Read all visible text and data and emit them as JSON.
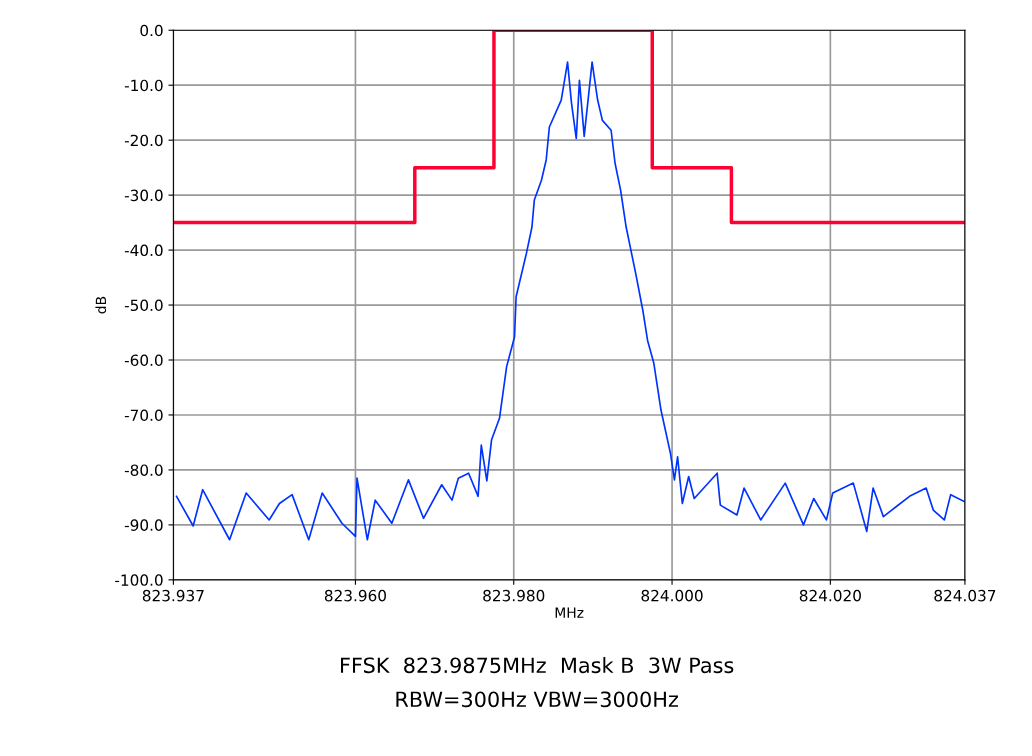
{
  "chart_data": {
    "type": "line",
    "title": "FFSK  823.9875MHz  Mask B  3W Pass",
    "subtitle": "RBW=300Hz VBW=3000Hz",
    "xlabel": "MHz",
    "ylabel": "dB",
    "xlim": [
      823.937,
      824.037
    ],
    "xticks": [
      823.937,
      {
        "value": 823.96,
        "label": "823.960"
      },
      {
        "value": 823.98,
        "label": "823.980"
      },
      {
        "value": 824.0,
        "label": "824.000"
      },
      {
        "value": 824.02,
        "label": "824.020"
      },
      824.037
    ],
    "ylim": [
      -100,
      0
    ],
    "yticks": [
      {
        "value": 0,
        "label": "0.0"
      },
      {
        "value": -10,
        "label": "-10.0"
      },
      {
        "value": -20,
        "label": "-20.0"
      },
      {
        "value": -30,
        "label": "-30.0"
      },
      {
        "value": -40,
        "label": "-40.0"
      },
      {
        "value": -50,
        "label": "-50.0"
      },
      {
        "value": -60,
        "label": "-60.0"
      },
      {
        "value": -70,
        "label": "-70.0"
      },
      {
        "value": -80,
        "label": "-80.0"
      },
      {
        "value": -90,
        "label": "-90.0"
      },
      {
        "value": -100,
        "label": "-100.0"
      }
    ],
    "grid": true,
    "legend": false,
    "marker": "none",
    "series": [
      {
        "type": "step",
        "color": "#ff0033",
        "x": [
          823.937,
          823.9675,
          823.9775,
          823.9975,
          824.0075,
          824.037
        ],
        "values": [
          -35,
          -25,
          0,
          -25,
          -35,
          -35
        ]
      },
      {
        "color": "#0033ff",
        "x": [
          823.9374,
          823.9395,
          823.9407,
          823.9441,
          823.9462,
          823.9491,
          823.9504,
          823.952,
          823.9541,
          823.9558,
          823.9583,
          823.96,
          823.9602,
          823.9615,
          823.9625,
          823.9646,
          823.9667,
          823.9686,
          823.9709,
          823.9722,
          823.973,
          823.9743,
          823.9755,
          823.9759,
          823.9766,
          823.9772,
          823.9782,
          823.9791,
          823.9801,
          823.9803,
          823.9816,
          823.9823,
          823.9826,
          823.9835,
          823.9841,
          823.9845,
          823.986,
          823.9868,
          823.9873,
          823.9879,
          823.9883,
          823.9889,
          823.9899,
          823.9906,
          823.9912,
          823.9923,
          823.9928,
          823.9935,
          823.9942,
          823.9948,
          823.9954,
          823.9963,
          823.9969,
          823.9977,
          823.9986,
          823.9998,
          824.0003,
          824.0007,
          824.0013,
          824.0021,
          824.0028,
          824.0057,
          824.0061,
          824.0082,
          824.0091,
          824.0112,
          824.0143,
          824.0166,
          824.0179,
          824.0195,
          824.0203,
          824.0229,
          824.0246,
          824.0254,
          824.0267,
          824.0283,
          824.03,
          824.0321,
          824.033,
          824.0344,
          824.0352,
          824.037
        ],
        "values": [
          -84.8,
          -90.2,
          -83.6,
          -92.7,
          -84.2,
          -89.1,
          -86.1,
          -84.5,
          -92.7,
          -84.2,
          -89.7,
          -92.1,
          -81.5,
          -92.7,
          -85.5,
          -89.7,
          -81.8,
          -88.8,
          -82.7,
          -85.5,
          -81.5,
          -80.6,
          -84.8,
          -75.5,
          -82,
          -74.5,
          -70.6,
          -61.2,
          -55.8,
          -48.5,
          -40.6,
          -35.8,
          -30.9,
          -27.3,
          -23.6,
          -17.6,
          -12.7,
          -5.8,
          -13.3,
          -19.7,
          -9.1,
          -19.3,
          -5.8,
          -12.7,
          -16.4,
          -18.2,
          -24.2,
          -29.1,
          -35.8,
          -40,
          -44.2,
          -50.9,
          -56.4,
          -60.6,
          -69.1,
          -77,
          -81.8,
          -77.6,
          -86.1,
          -81.2,
          -85.2,
          -80.6,
          -86.4,
          -88.2,
          -83.3,
          -89.1,
          -82.4,
          -90,
          -85.2,
          -89.1,
          -84.2,
          -82.4,
          -91.2,
          -83.3,
          -88.5,
          -86.7,
          -84.8,
          -83.3,
          -87.3,
          -89.1,
          -84.5,
          -85.8
        ]
      }
    ]
  }
}
